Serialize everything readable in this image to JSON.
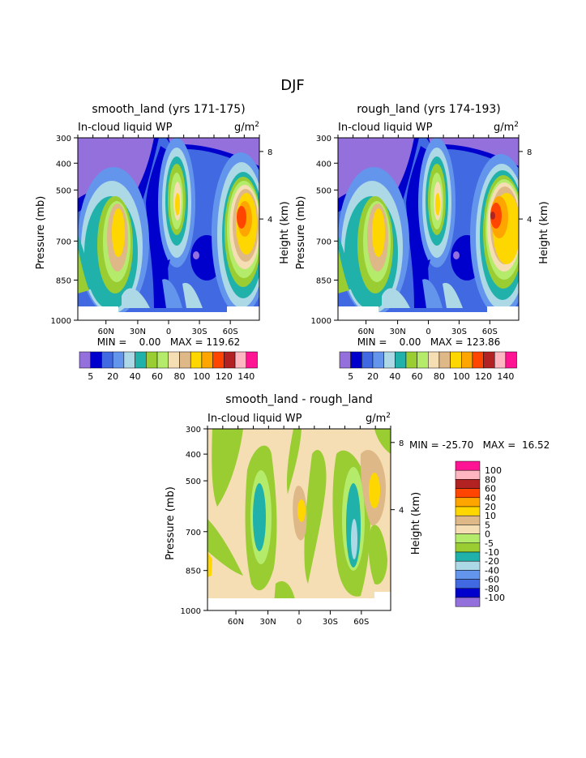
{
  "suptitle": "DJF",
  "colors": {
    "levels13": [
      "#9370db",
      "#0000cd",
      "#4169e1",
      "#6495ed",
      "#add8e6",
      "#20b2aa",
      "#9acd32",
      "#b4eb6b",
      "#f5deb3",
      "#deb887",
      "#ffd700",
      "#ffa500",
      "#ff4500",
      "#b22222",
      "#ffb6c1",
      "#ff1493"
    ],
    "panel": [
      "#9370db",
      "#0000cd",
      "#4169e1",
      "#6495ed",
      "#add8e6",
      "#20b2aa",
      "#9acd32",
      "#b4eb6b",
      "#f5deb3",
      "#deb887",
      "#ffd700",
      "#ffa500",
      "#ff4500",
      "#b22222",
      "#ffb6c1",
      "#ff1493"
    ]
  },
  "chart_data": [
    {
      "type": "heatmap",
      "title": "smooth_land (yrs 171-175)",
      "left_label": "In-cloud liquid WP",
      "right_label": "g/m",
      "right_label_sup": "2",
      "ylabel": "Pressure (mb)",
      "y2label": "Height (km)",
      "yticks": [
        "300",
        "400",
        "500",
        "700",
        "850",
        "1000"
      ],
      "y2ticks": [
        "8",
        "4"
      ],
      "xticks": [
        "60N",
        "30N",
        "0",
        "30S",
        "60S"
      ],
      "stats": "MIN =    0.00   MAX = 119.62",
      "colorbar_labels": [
        "5",
        "20",
        "40",
        "60",
        "80",
        "100",
        "120",
        "140"
      ],
      "peaks": [
        {
          "lat": 47,
          "p": 640,
          "value": 105
        },
        {
          "lat": 1,
          "p": 560,
          "value": 95
        },
        {
          "lat": -64,
          "p": 620,
          "value": 115
        },
        {
          "lat": -34,
          "p": 740,
          "value": 8
        }
      ]
    },
    {
      "type": "heatmap",
      "title": "rough_land (yrs 174-193)",
      "left_label": "In-cloud liquid WP",
      "right_label": "g/m",
      "right_label_sup": "2",
      "ylabel": "Pressure (mb)",
      "y2label": "Height (km)",
      "yticks": [
        "300",
        "400",
        "500",
        "700",
        "850",
        "1000"
      ],
      "y2ticks": [
        "8",
        "4"
      ],
      "xticks": [
        "60N",
        "30N",
        "0",
        "30S",
        "60S"
      ],
      "stats": "MIN =    0.00   MAX = 123.86",
      "colorbar_labels": [
        "5",
        "20",
        "40",
        "60",
        "80",
        "100",
        "120",
        "140"
      ],
      "peaks": [
        {
          "lat": 47,
          "p": 640,
          "value": 105
        },
        {
          "lat": 1,
          "p": 560,
          "value": 95
        },
        {
          "lat": -62,
          "p": 610,
          "value": 123
        },
        {
          "lat": -34,
          "p": 740,
          "value": 8
        }
      ]
    },
    {
      "type": "heatmap",
      "title": "smooth_land - rough_land",
      "left_label": "In-cloud liquid WP",
      "right_label": "g/m",
      "right_label_sup": "2",
      "ylabel": "Pressure (mb)",
      "y2label": "Height (km)",
      "yticks": [
        "300",
        "400",
        "500",
        "700",
        "850",
        "1000"
      ],
      "y2ticks": [
        "8",
        "4"
      ],
      "xticks": [
        "60N",
        "30N",
        "0",
        "30S",
        "60S"
      ],
      "stats": "MIN = -25.70   MAX =  16.52",
      "colorbar_labels": [
        "100",
        "80",
        "60",
        "40",
        "20",
        "10",
        "5",
        "0",
        "-5",
        "-10",
        "-20",
        "-40",
        "-60",
        "-80",
        "-100"
      ]
    }
  ]
}
